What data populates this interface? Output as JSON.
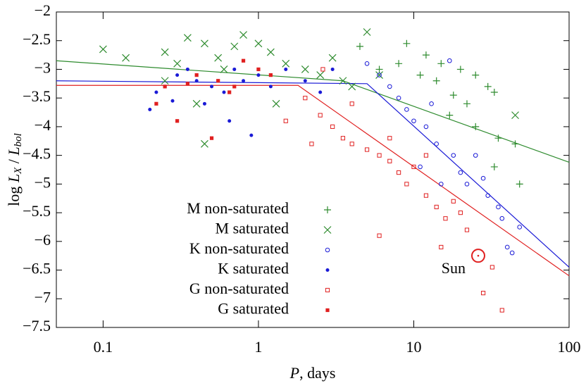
{
  "chart_data": {
    "type": "scatter",
    "xlabel": [
      "P",
      ", days"
    ],
    "ylabel": [
      "log ",
      "L",
      "X",
      " / ",
      "L",
      "bol"
    ],
    "xlim": [
      0.05,
      100
    ],
    "ylim": [
      -7.5,
      -2
    ],
    "xscale": "log",
    "xticks": [
      0.1,
      1,
      10,
      100
    ],
    "yticks": [
      {
        "value": -2,
        "label": "−2"
      },
      {
        "value": -2.5,
        "label": "−2.5"
      },
      {
        "value": -3,
        "label": "−3"
      },
      {
        "value": -3.5,
        "label": "−3.5"
      },
      {
        "value": -4,
        "label": "−4"
      },
      {
        "value": -4.5,
        "label": "−4.5"
      },
      {
        "value": -5,
        "label": "−5"
      },
      {
        "value": -5.5,
        "label": "−5.5"
      },
      {
        "value": -6,
        "label": "−6"
      },
      {
        "value": -6.5,
        "label": "−6.5"
      },
      {
        "value": -7,
        "label": "−7"
      },
      {
        "value": -7.5,
        "label": "−7.5"
      }
    ],
    "legend": "lower left",
    "series": [
      {
        "name": "M non-saturated",
        "color": "#2e8b2e",
        "marker": "plus",
        "x": [
          4.5,
          9,
          12,
          15,
          20,
          25,
          30,
          33,
          22,
          17,
          25,
          35,
          45,
          33,
          48,
          14,
          8,
          6,
          11,
          18
        ],
        "values": [
          -2.6,
          -2.55,
          -2.75,
          -2.9,
          -3.0,
          -3.1,
          -3.3,
          -3.4,
          -3.6,
          -3.8,
          -4.0,
          -4.2,
          -4.3,
          -4.7,
          -5.0,
          -3.2,
          -2.9,
          -3.0,
          -3.1,
          -3.45
        ]
      },
      {
        "name": "M saturated",
        "color": "#2e8b2e",
        "marker": "x",
        "x": [
          0.1,
          0.14,
          0.25,
          0.3,
          0.35,
          0.45,
          0.55,
          0.7,
          0.8,
          1.0,
          1.2,
          1.5,
          2,
          2.5,
          3,
          4,
          5,
          0.4,
          0.45,
          0.6,
          1.3,
          3.5,
          6,
          45,
          0.25
        ],
        "values": [
          -2.65,
          -2.8,
          -2.7,
          -2.9,
          -2.45,
          -2.55,
          -2.8,
          -2.6,
          -2.4,
          -2.55,
          -2.7,
          -2.9,
          -3.0,
          -3.1,
          -2.8,
          -3.3,
          -2.35,
          -3.6,
          -4.3,
          -3.0,
          -3.6,
          -3.2,
          -3.1,
          -3.8,
          -3.2
        ]
      },
      {
        "name": "K non-saturated",
        "color": "#1a1ad6",
        "marker": "circle",
        "x": [
          5,
          6,
          7,
          8,
          9,
          10,
          12,
          14,
          17,
          13,
          18,
          20,
          22,
          25,
          30,
          35,
          37,
          40,
          43,
          48,
          11,
          15,
          28
        ],
        "values": [
          -2.9,
          -3.1,
          -3.3,
          -3.5,
          -3.7,
          -3.9,
          -4.0,
          -4.3,
          -2.85,
          -3.6,
          -4.5,
          -4.8,
          -5.0,
          -4.5,
          -5.2,
          -5.4,
          -5.6,
          -6.1,
          -6.2,
          -5.75,
          -4.7,
          -5.0,
          -4.9
        ]
      },
      {
        "name": "K saturated",
        "color": "#1a1ad6",
        "marker": "dot",
        "x": [
          0.2,
          0.22,
          0.25,
          0.3,
          0.35,
          0.4,
          0.5,
          0.6,
          0.7,
          0.8,
          0.9,
          1.0,
          1.2,
          1.5,
          2,
          2.5,
          3,
          0.65,
          0.28,
          0.45
        ],
        "values": [
          -3.7,
          -3.4,
          -3.3,
          -3.1,
          -3.0,
          -3.2,
          -3.3,
          -3.4,
          -3.0,
          -3.2,
          -4.15,
          -3.1,
          -3.3,
          -3.0,
          -3.2,
          -3.4,
          -3.0,
          -3.9,
          -3.55,
          -3.6
        ]
      },
      {
        "name": "G non-saturated",
        "color": "#e02020",
        "marker": "square",
        "x": [
          1.5,
          2,
          2.5,
          3,
          3.5,
          4,
          5,
          6,
          7,
          8,
          9,
          10,
          12,
          14,
          16,
          18,
          20,
          22,
          6,
          15,
          32,
          28,
          37,
          2.6,
          4,
          7,
          12,
          2.2
        ],
        "values": [
          -3.9,
          -3.5,
          -3.8,
          -4.0,
          -4.2,
          -4.3,
          -4.4,
          -4.5,
          -4.6,
          -4.8,
          -5.0,
          -4.7,
          -5.2,
          -5.4,
          -5.6,
          -5.3,
          -5.5,
          -5.8,
          -5.9,
          -6.1,
          -6.45,
          -6.9,
          -7.2,
          -3.0,
          -3.6,
          -4.2,
          -4.5,
          -4.3
        ]
      },
      {
        "name": "G saturated",
        "color": "#e02020",
        "marker": "filled-square",
        "x": [
          0.22,
          0.3,
          0.5,
          0.25,
          0.4,
          0.55,
          0.7,
          0.8,
          1.0,
          1.2,
          0.35,
          0.65
        ],
        "values": [
          -3.6,
          -3.9,
          -4.2,
          -3.3,
          -3.1,
          -3.2,
          -3.3,
          -2.85,
          -3.0,
          -3.1,
          -3.25,
          -3.4
        ]
      }
    ],
    "fit_lines": [
      {
        "color": "#2e8b2e",
        "x": [
          0.05,
          3.5,
          100
        ],
        "values": [
          -2.85,
          -3.2,
          -4.62
        ]
      },
      {
        "color": "#1a1ad6",
        "x": [
          0.05,
          5,
          100
        ],
        "values": [
          -3.2,
          -3.25,
          -6.45
        ]
      },
      {
        "color": "#e02020",
        "x": [
          0.05,
          1.8,
          100
        ],
        "values": [
          -3.28,
          -3.28,
          -6.6
        ]
      }
    ],
    "annotations": [
      {
        "text": "Sun",
        "x": 26,
        "y": -6.25,
        "color": "#e02020"
      }
    ]
  }
}
